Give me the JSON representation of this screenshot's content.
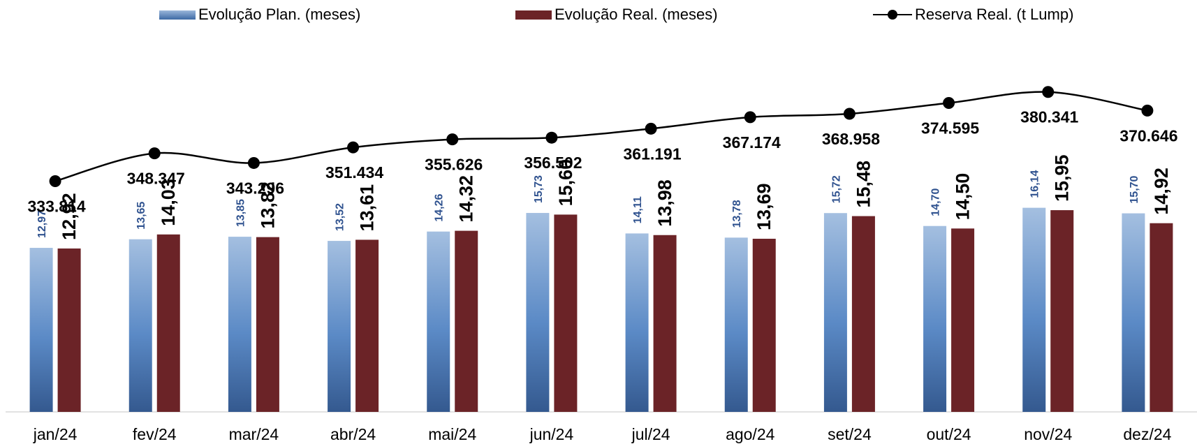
{
  "legend": {
    "plan_label": "Evolução Plan. (meses)",
    "real_label": "Evolução Real. (meses)",
    "reserva_label": "Reserva Real. (t Lump)"
  },
  "colors": {
    "plan_top": "#a4bfe0",
    "plan_mid": "#5b8ac6",
    "plan_bottom": "#34598f",
    "real": "#6b2327",
    "plan_label": "#2f528f",
    "real_label": "#000000",
    "line": "#000000"
  },
  "chart_data": {
    "type": "bar",
    "categories": [
      "jan/24",
      "fev/24",
      "mar/24",
      "abr/24",
      "mai/24",
      "jun/24",
      "jul/24",
      "ago/24",
      "set/24",
      "out/24",
      "nov/24",
      "dez/24"
    ],
    "series": [
      {
        "name": "Evolução Plan. (meses)",
        "type": "bar",
        "values": [
          12.97,
          13.65,
          13.85,
          13.52,
          14.26,
          15.73,
          14.11,
          13.78,
          15.72,
          14.7,
          16.14,
          15.7
        ],
        "labels": [
          "12,97",
          "13,65",
          "13,85",
          "13,52",
          "14,26",
          "15,73",
          "14,11",
          "13,78",
          "15,72",
          "14,70",
          "16,14",
          "15,70"
        ]
      },
      {
        "name": "Evolução Real. (meses)",
        "type": "bar",
        "values": [
          12.92,
          14.03,
          13.82,
          13.61,
          14.32,
          15.6,
          13.98,
          13.69,
          15.48,
          14.5,
          15.95,
          14.92
        ],
        "labels": [
          "12,92",
          "14,03",
          "13,82",
          "13,61",
          "14,32",
          "15,60",
          "13,98",
          "13,69",
          "15,48",
          "14,50",
          "15,95",
          "14,92"
        ]
      },
      {
        "name": "Reserva Real. (t Lump)",
        "type": "line",
        "values": [
          333814,
          348347,
          343296,
          351434,
          355626,
          356502,
          361191,
          367174,
          368958,
          374595,
          380341,
          370646
        ],
        "labels": [
          "333.814",
          "348.347",
          "343.296",
          "351.434",
          "355.626",
          "356.502",
          "361.191",
          "367.174",
          "368.958",
          "374.595",
          "380.341",
          "370.646"
        ]
      }
    ],
    "bar_axis_range": [
      0,
      27.6
    ],
    "line_axis_range": [
      220000,
      397000
    ],
    "grid": false,
    "legend_position": "top"
  }
}
